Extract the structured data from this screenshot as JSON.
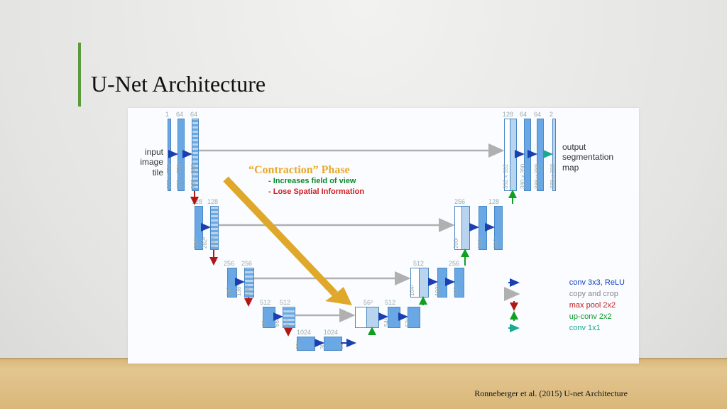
{
  "title": "U-Net Architecture",
  "citation": "Ronneberger et al. (2015) U-net Architecture",
  "input_label": "input\nimage\ntile",
  "output_label": "output\nsegmentation\nmap",
  "phase": {
    "title": "“Contraction” Phase",
    "line1": "- Increases field of view",
    "line2": "- Lose Spatial Information"
  },
  "legend": {
    "conv": "conv 3x3, ReLU",
    "copy": "copy and crop",
    "pool": "max pool 2x2",
    "upconv": "up-conv 2x2",
    "conv1": "conv 1x1"
  },
  "channels": {
    "l0": [
      "1",
      "64",
      "64"
    ],
    "l1": [
      "128",
      "128"
    ],
    "l2": [
      "256",
      "256"
    ],
    "l3": [
      "512",
      "512"
    ],
    "l4": [
      "1024",
      "1024"
    ],
    "r3": [
      "512",
      "256"
    ],
    "r2": [
      "256",
      "128"
    ],
    "r1": [
      "128",
      "64",
      "64",
      "2"
    ],
    "r3up": "512",
    "r2up": "256"
  },
  "dims": {
    "l0": [
      "572 x 572",
      "570 x 570",
      "568 x 568"
    ],
    "l1": [
      "284²",
      "282²",
      "280²"
    ],
    "l2": [
      "140²",
      "138²",
      "136²"
    ],
    "l3": [
      "68²",
      "66²",
      "64²"
    ],
    "l4": [
      "32²",
      "30²",
      "28²"
    ],
    "r4": "56²",
    "r3": [
      "104²",
      "102²",
      "100²"
    ],
    "r2": [
      "200²",
      "198²",
      "196²"
    ],
    "r1": [
      "392 x 392",
      "390 x 390",
      "388 x 388",
      "388 x 388"
    ],
    "r3b": [
      "54²",
      "52²"
    ]
  },
  "colors": {
    "block": "#69a8e4",
    "conv_arrow": "#1a3fb0",
    "copy_arrow": "#b0b0b0",
    "pool_arrow": "#b01818",
    "upconv_arrow": "#10a020",
    "conv1_arrow": "#1aa890",
    "big_arrow": "#e0a82a"
  }
}
